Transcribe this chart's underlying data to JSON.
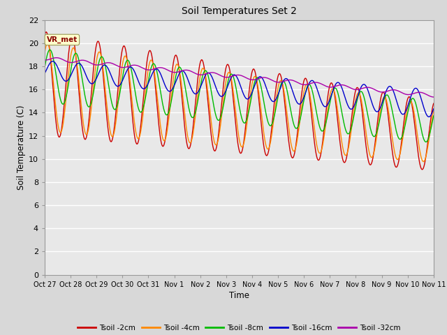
{
  "title": "Soil Temperatures Set 2",
  "xlabel": "Time",
  "ylabel": "Soil Temperature (C)",
  "ylim": [
    0,
    22
  ],
  "yticks": [
    0,
    2,
    4,
    6,
    8,
    10,
    12,
    14,
    16,
    18,
    20,
    22
  ],
  "annotation": "VR_met",
  "fig_facecolor": "#d8d8d8",
  "plot_facecolor": "#e8e8e8",
  "series_colors": [
    "#cc0000",
    "#ff8800",
    "#00bb00",
    "#0000cc",
    "#aa00aa"
  ],
  "series_labels": [
    "Tsoil -2cm",
    "Tsoil -4cm",
    "Tsoil -8cm",
    "Tsoil -16cm",
    "Tsoil -32cm"
  ],
  "xtick_labels": [
    "Oct 27",
    "Oct 28",
    "Oct 29",
    "Oct 30",
    "Oct 31",
    "Nov 1",
    "Nov 2",
    "Nov 3",
    "Nov 4",
    "Nov 5",
    "Nov 6",
    "Nov 7",
    "Nov 8",
    "Nov 9",
    "Nov 10",
    "Nov 11"
  ],
  "num_days": 15,
  "points_per_day": 48
}
